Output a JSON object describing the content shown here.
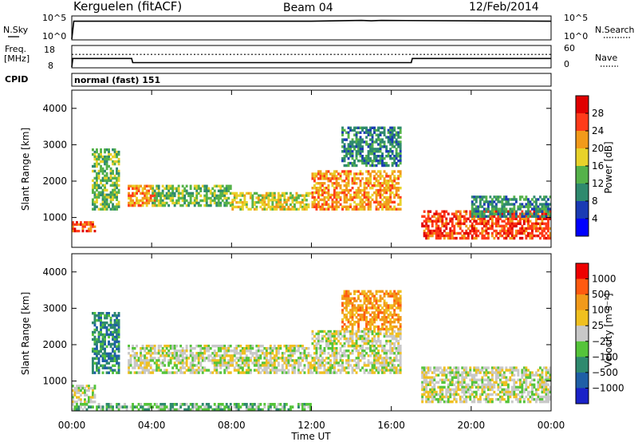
{
  "header": {
    "station": "Kerguelen (fitACF)",
    "beam": "Beam 04",
    "date": "12/Feb/2014"
  },
  "top_panels": {
    "nsky_label": "N.Sky",
    "nsky_ticks": [
      "10^5",
      "10^0"
    ],
    "nsearch_label": "N.Search",
    "nsearch_ticks": [
      "10^5",
      "10^0"
    ],
    "freq_label_1": "Freq.",
    "freq_label_2": "[MHz]",
    "freq_ticks": [
      "18",
      "8"
    ],
    "nave_label": "Nave",
    "nave_ticks": [
      "60",
      "0"
    ],
    "cpid_label": "CPID",
    "cpid_value": "normal (fast) 151"
  },
  "chart_data": [
    {
      "type": "line",
      "name": "N.Sky",
      "x_hours": [
        0,
        0.1,
        12.0,
        14.5,
        15.0,
        15.5,
        24.0
      ],
      "log10_values": [
        0,
        4.3,
        4.3,
        4.5,
        4.4,
        4.5,
        4.3
      ],
      "ylim_log10": [
        0,
        5
      ]
    },
    {
      "type": "line",
      "name": "Freq",
      "x_hours": [
        0,
        0.05,
        3.0,
        3.05,
        17.0,
        17.05,
        24.0
      ],
      "values_mhz": [
        8,
        12.3,
        12.3,
        10.2,
        10.2,
        12.3,
        12.3
      ],
      "nave_dotted": 38,
      "ylim_mhz": [
        8,
        18
      ],
      "ylim_nave": [
        0,
        60
      ]
    },
    {
      "type": "heatmap",
      "name": "Power",
      "ylabel": "Slant Range [km]",
      "yticks": [
        "4000",
        "3000",
        "2000",
        "1000"
      ],
      "ylim_km": [
        180,
        4500
      ],
      "colorbar_label": "Power [dB]",
      "colorbar_ticks": [
        "28",
        "24",
        "20",
        "16",
        "12",
        "8",
        "4"
      ],
      "colorbar_colors": [
        "#0000ff",
        "#1a3bb4",
        "#2f8a6e",
        "#55b24a",
        "#e8d22a",
        "#f29a1a",
        "#ff3b1a",
        "#e00000"
      ],
      "regions": [
        {
          "t0": 0.0,
          "t1": 1.2,
          "r0": 600,
          "r1": 900,
          "level": 6
        },
        {
          "t0": 1.0,
          "t1": 2.4,
          "r0": 1200,
          "r1": 2900,
          "level": 3
        },
        {
          "t0": 2.8,
          "t1": 4.2,
          "r0": 1300,
          "r1": 1900,
          "level": 5
        },
        {
          "t0": 4.0,
          "t1": 8.0,
          "r0": 1300,
          "r1": 1900,
          "level": 3
        },
        {
          "t0": 8.0,
          "t1": 12.0,
          "r0": 1200,
          "r1": 1700,
          "level": 4
        },
        {
          "t0": 12.0,
          "t1": 16.5,
          "r0": 1200,
          "r1": 2300,
          "level": 5
        },
        {
          "t0": 13.5,
          "t1": 16.5,
          "r0": 2400,
          "r1": 3500,
          "level": 2
        },
        {
          "t0": 17.5,
          "t1": 24.0,
          "r0": 400,
          "r1": 1200,
          "level": 6
        },
        {
          "t0": 20.0,
          "t1": 24.0,
          "r0": 1000,
          "r1": 1600,
          "level": 2
        }
      ]
    },
    {
      "type": "heatmap",
      "name": "Velocity",
      "ylabel": "Slant Range [km]",
      "yticks": [
        "4000",
        "3000",
        "2000",
        "1000"
      ],
      "ylim_km": [
        180,
        4500
      ],
      "colorbar_label": "Velocity [m s⁻¹]",
      "colorbar_ticks": [
        "1000",
        "500",
        "100",
        "25",
        "−25",
        "−100",
        "−500",
        "−1000"
      ],
      "colorbar_colors": [
        "#1a22c8",
        "#1f5fa6",
        "#2f8a6e",
        "#55c43a",
        "#c8c8c8",
        "#f0c020",
        "#f29a1a",
        "#ff5a10",
        "#ee0000"
      ],
      "regions": [
        {
          "t0": 0.0,
          "t1": 1.2,
          "r0": 400,
          "r1": 900,
          "level": 4
        },
        {
          "t0": 1.0,
          "t1": 2.4,
          "r0": 1200,
          "r1": 2900,
          "level": 2
        },
        {
          "t0": 2.8,
          "t1": 12.0,
          "r0": 1200,
          "r1": 2000,
          "level": 4
        },
        {
          "t0": 12.0,
          "t1": 16.5,
          "r0": 1200,
          "r1": 2400,
          "level": 4
        },
        {
          "t0": 13.5,
          "t1": 16.5,
          "r0": 2400,
          "r1": 3500,
          "level": 6
        },
        {
          "t0": 17.5,
          "t1": 24.0,
          "r0": 400,
          "r1": 1400,
          "level": 4
        },
        {
          "t0": 0.0,
          "t1": 12.0,
          "r0": 180,
          "r1": 400,
          "level": 3
        }
      ]
    }
  ],
  "xaxis": {
    "ticks": [
      "00:00",
      "04:00",
      "08:00",
      "12:00",
      "16:00",
      "20:00",
      "00:00"
    ],
    "label": "Time UT",
    "range_hours": [
      0,
      24
    ]
  }
}
